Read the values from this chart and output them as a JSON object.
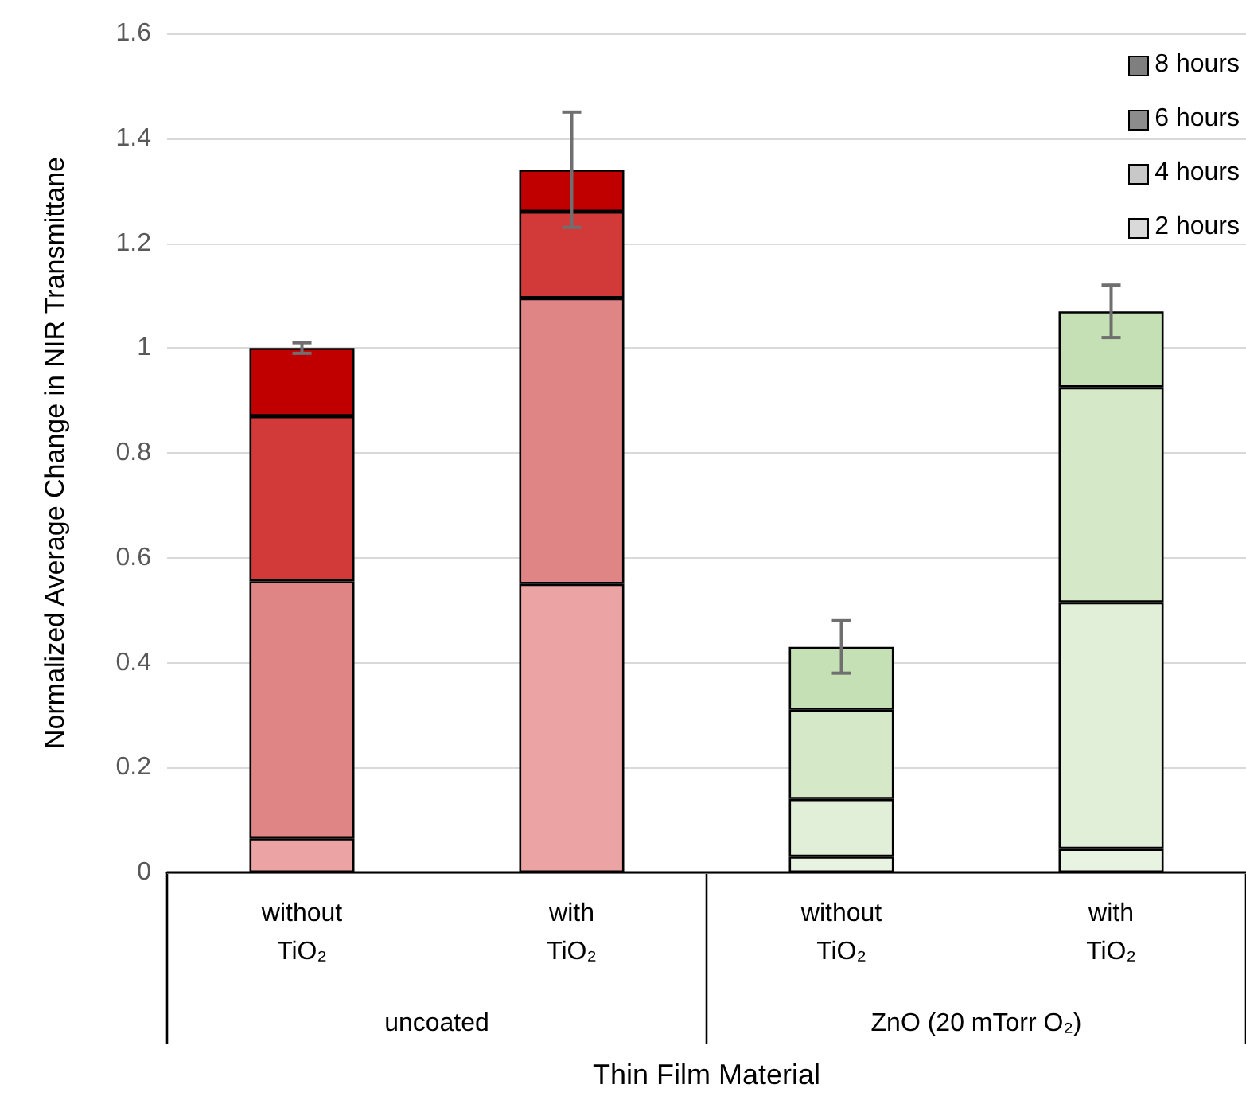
{
  "chart_data": {
    "type": "bar",
    "stacked": true,
    "xlabel": "Thin Film Material",
    "ylabel": "Normalized Average Change in NIR Transmittane",
    "categories": [
      "without TiO₂",
      "with TiO₂",
      "without TiO₂",
      "with TiO₂"
    ],
    "annotations": [
      "uncoated",
      "ZnO (20 mTorr O₂)"
    ],
    "series": [
      {
        "name": "2 hours",
        "color": "#d9d9d9",
        "colors": [
          "#eba3a3",
          "#eba3a3",
          "#e9f3e1",
          "#e9f3e1"
        ],
        "values": [
          0.065,
          0.55,
          0.03,
          0.045
        ]
      },
      {
        "name": "4 hours",
        "color": "#c8c8c8",
        "colors": [
          "#e08585",
          "#e08585",
          "#e1efd8",
          "#e1efd8"
        ],
        "values": [
          0.49,
          0.545,
          0.11,
          0.47
        ]
      },
      {
        "name": "6 hours",
        "color": "#8c8c8c",
        "colors": [
          "#d23a3a",
          "#d23a3a",
          "#d5e8c7",
          "#d5e8c7"
        ],
        "values": [
          0.315,
          0.165,
          0.17,
          0.41
        ]
      },
      {
        "name": "8 hours",
        "color": "#7f7f7f",
        "colors": [
          "#c00000",
          "#c00000",
          "#c5e0b4",
          "#c5e0b4"
        ],
        "values": [
          0.13,
          0.08,
          0.12,
          0.145
        ],
        "errors": [
          0.01,
          0.11,
          0.05,
          0.05
        ]
      }
    ],
    "ylim": [
      0,
      1.6
    ],
    "yticks": [
      0,
      0.2,
      0.4,
      0.6,
      0.8,
      1,
      1.2,
      1.4,
      1.6
    ],
    "grid": "y",
    "legend": "top right"
  }
}
